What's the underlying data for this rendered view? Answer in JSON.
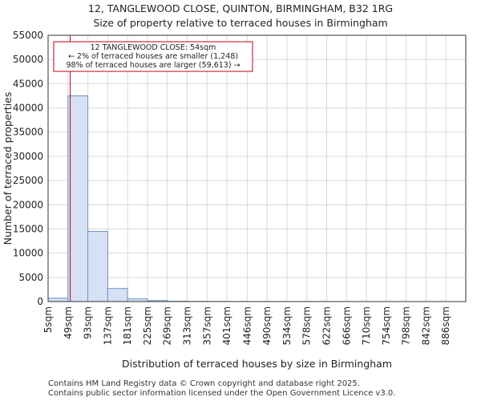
{
  "chart_data": {
    "type": "bar",
    "title_line1": "12, TANGLEWOOD CLOSE, QUINTON, BIRMINGHAM, B32 1RG",
    "title_line2": "Size of property relative to terraced houses in Birmingham",
    "xlabel": "Distribution of terraced houses by size in Birmingham",
    "ylabel": "Number of terraced properties",
    "categories": [
      "5sqm",
      "49sqm",
      "93sqm",
      "137sqm",
      "181sqm",
      "225sqm",
      "269sqm",
      "313sqm",
      "357sqm",
      "401sqm",
      "446sqm",
      "490sqm",
      "534sqm",
      "578sqm",
      "622sqm",
      "666sqm",
      "710sqm",
      "754sqm",
      "798sqm",
      "842sqm",
      "886sqm"
    ],
    "bin_edges": [
      5,
      49,
      93,
      137,
      181,
      225,
      269,
      313,
      357,
      401,
      446,
      490,
      534,
      578,
      622,
      666,
      710,
      754,
      798,
      842,
      886,
      930
    ],
    "values": [
      700,
      42500,
      14500,
      2700,
      550,
      200,
      60,
      25,
      10,
      5,
      3,
      2,
      1,
      1,
      1,
      0,
      0,
      0,
      0,
      0,
      0
    ],
    "yticks": [
      0,
      5000,
      10000,
      15000,
      20000,
      25000,
      30000,
      35000,
      40000,
      45000,
      50000,
      55000
    ],
    "ylim": [
      0,
      55000
    ],
    "grid": true,
    "marker_value": 54,
    "annotation": {
      "line1": "12 TANGLEWOOD CLOSE: 54sqm",
      "line2": "← 2% of terraced houses are smaller (1,248)",
      "line3": "98% of terraced houses are larger (59,613) →"
    },
    "colors": {
      "bar_fill": "#d6e1f3",
      "bar_edge": "#6f93c6",
      "marker": "#c0001a",
      "grid": "#d9d9d9"
    }
  },
  "footer": {
    "line1": "Contains HM Land Registry data © Crown copyright and database right 2025.",
    "line2": "Contains public sector information licensed under the Open Government Licence v3.0."
  }
}
